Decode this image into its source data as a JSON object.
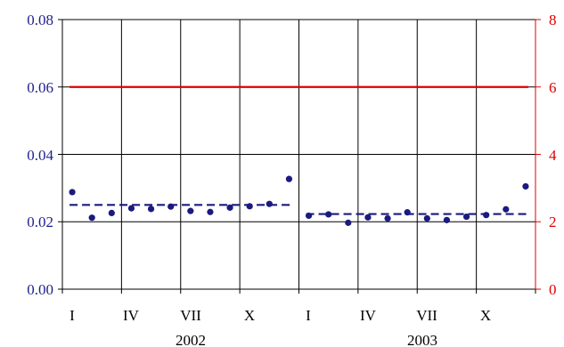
{
  "chart_data": {
    "type": "scatter",
    "title": "",
    "xlabel": "",
    "ylabel": "",
    "x_tick_labels": [
      "I",
      "IV",
      "VII",
      "X",
      "I",
      "IV",
      "VII",
      "X"
    ],
    "year_labels": [
      "2002",
      "2003"
    ],
    "y_left": {
      "ticks": [
        "0.00",
        "0.02",
        "0.04",
        "0.06",
        "0.08"
      ],
      "lim": [
        0,
        0.08
      ],
      "color": "#1f1f8f"
    },
    "y_right": {
      "ticks": [
        "0",
        "2",
        "4",
        "6",
        "8"
      ],
      "lim": [
        0,
        8
      ],
      "color": "#e00000"
    },
    "grid": true,
    "months": 24,
    "series": [
      {
        "kind": "points",
        "axis": "left",
        "color": "#1a1a80",
        "x": [
          1,
          2,
          3,
          4,
          5,
          6,
          7,
          8,
          9,
          10,
          11,
          12,
          13,
          14,
          15,
          16,
          17,
          18,
          19,
          20,
          21,
          22,
          23,
          24
        ],
        "y": [
          0.0288,
          0.0212,
          0.0226,
          0.024,
          0.0238,
          0.0245,
          0.0232,
          0.0229,
          0.0242,
          0.0246,
          0.0253,
          0.0327,
          0.0218,
          0.0222,
          0.0197,
          0.0213,
          0.021,
          0.0228,
          0.021,
          0.0205,
          0.0215,
          0.022,
          0.0237,
          0.0305
        ]
      },
      {
        "kind": "dashed-mean",
        "axis": "left",
        "color": "#1a1a80",
        "x": [
          1,
          12
        ],
        "y": [
          0.025,
          0.025
        ]
      },
      {
        "kind": "dashed-mean",
        "axis": "left",
        "color": "#1a1a80",
        "x": [
          13,
          24
        ],
        "y": [
          0.0223,
          0.0223
        ]
      },
      {
        "kind": "limit-line",
        "axis": "right",
        "color": "#e00000",
        "x": [
          1,
          24
        ],
        "y": [
          6,
          6
        ]
      }
    ]
  }
}
